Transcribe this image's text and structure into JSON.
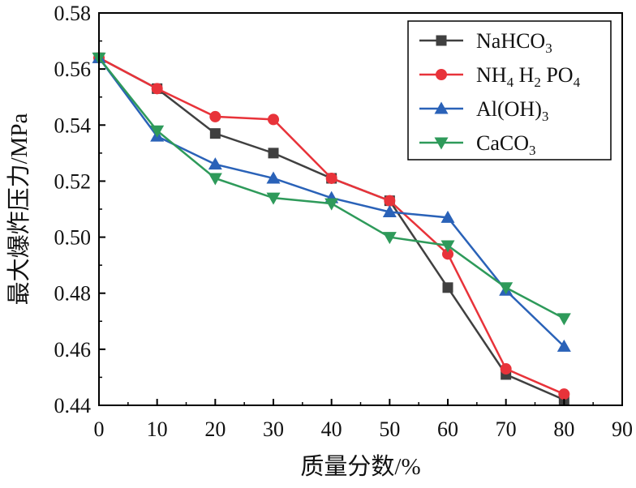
{
  "chart_data": {
    "type": "line",
    "title": "",
    "xlabel": "质量分数/%",
    "ylabel": "最大爆炸压力/MPa",
    "x": [
      0,
      10,
      20,
      30,
      40,
      50,
      60,
      70,
      80
    ],
    "xlim": [
      0,
      90
    ],
    "ylim": [
      0.44,
      0.58
    ],
    "x_ticks": [
      0,
      10,
      20,
      30,
      40,
      50,
      60,
      70,
      80,
      90
    ],
    "x_tick_labels": [
      "0",
      "10",
      "20",
      "30",
      "40",
      "50",
      "60",
      "70",
      "80",
      "90"
    ],
    "y_ticks": [
      0.44,
      0.46,
      0.48,
      0.5,
      0.52,
      0.54,
      0.56,
      0.58
    ],
    "y_tick_labels": [
      "0.44",
      "0.46",
      "0.48",
      "0.50",
      "0.52",
      "0.54",
      "0.56",
      "0.58"
    ],
    "grid": false,
    "legend_position": "top-right",
    "series": [
      {
        "name": "NaHCO3",
        "label_parts": [
          [
            "NaHCO",
            ""
          ],
          [
            "3",
            "sub"
          ]
        ],
        "color": "#404040",
        "marker": "square",
        "values": [
          0.564,
          0.553,
          0.537,
          0.53,
          0.521,
          0.513,
          0.482,
          0.451,
          0.442
        ]
      },
      {
        "name": "NH4H2PO4",
        "label_parts": [
          [
            "NH",
            ""
          ],
          [
            "4",
            "sub"
          ],
          [
            " H",
            ""
          ],
          [
            "2",
            "sub"
          ],
          [
            " PO",
            ""
          ],
          [
            "4",
            "sub"
          ]
        ],
        "color": "#e8333a",
        "marker": "circle",
        "values": [
          0.564,
          0.553,
          0.543,
          0.542,
          0.521,
          0.513,
          0.494,
          0.453,
          0.444
        ]
      },
      {
        "name": "Al(OH)3",
        "label_parts": [
          [
            "Al(OH)",
            ""
          ],
          [
            "3",
            "sub"
          ]
        ],
        "color": "#2a62b8",
        "marker": "triangle-up",
        "values": [
          0.564,
          0.536,
          0.526,
          0.521,
          0.514,
          0.509,
          0.507,
          0.481,
          0.461
        ]
      },
      {
        "name": "CaCO3",
        "label_parts": [
          [
            "CaCO",
            ""
          ],
          [
            "3",
            "sub"
          ]
        ],
        "color": "#2e9a5a",
        "marker": "triangle-down",
        "values": [
          0.564,
          0.538,
          0.521,
          0.514,
          0.512,
          0.5,
          0.497,
          0.482,
          0.471
        ]
      }
    ]
  }
}
